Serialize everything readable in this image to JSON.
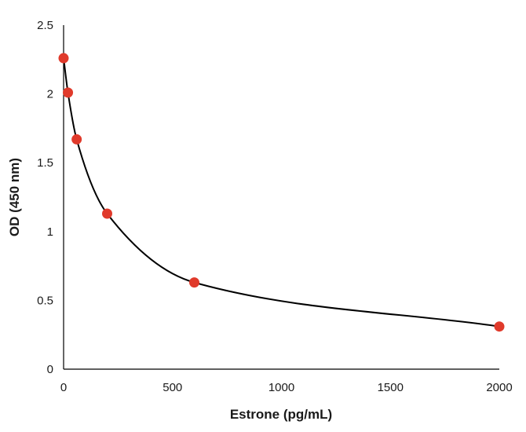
{
  "chart_data": {
    "type": "scatter",
    "title": "",
    "xlabel": "Estrone (pg/mL)",
    "ylabel": "OD (450 nm)",
    "xlim": [
      0,
      2000
    ],
    "ylim": [
      0,
      2.5
    ],
    "xticks": [
      "0",
      "500",
      "1000",
      "1500",
      "2000"
    ],
    "yticks": [
      "0",
      "0.5",
      "1",
      "1.5",
      "2",
      "2.5"
    ],
    "grid": false,
    "legend": "none",
    "marker_color": "#e03a2b",
    "curve_color": "#000000",
    "series": [
      {
        "x": [
          0,
          20,
          60,
          200,
          600,
          2000
        ],
        "y": [
          2.26,
          2.01,
          1.67,
          1.13,
          0.63,
          0.31
        ]
      }
    ],
    "fit_curve": "smooth"
  }
}
